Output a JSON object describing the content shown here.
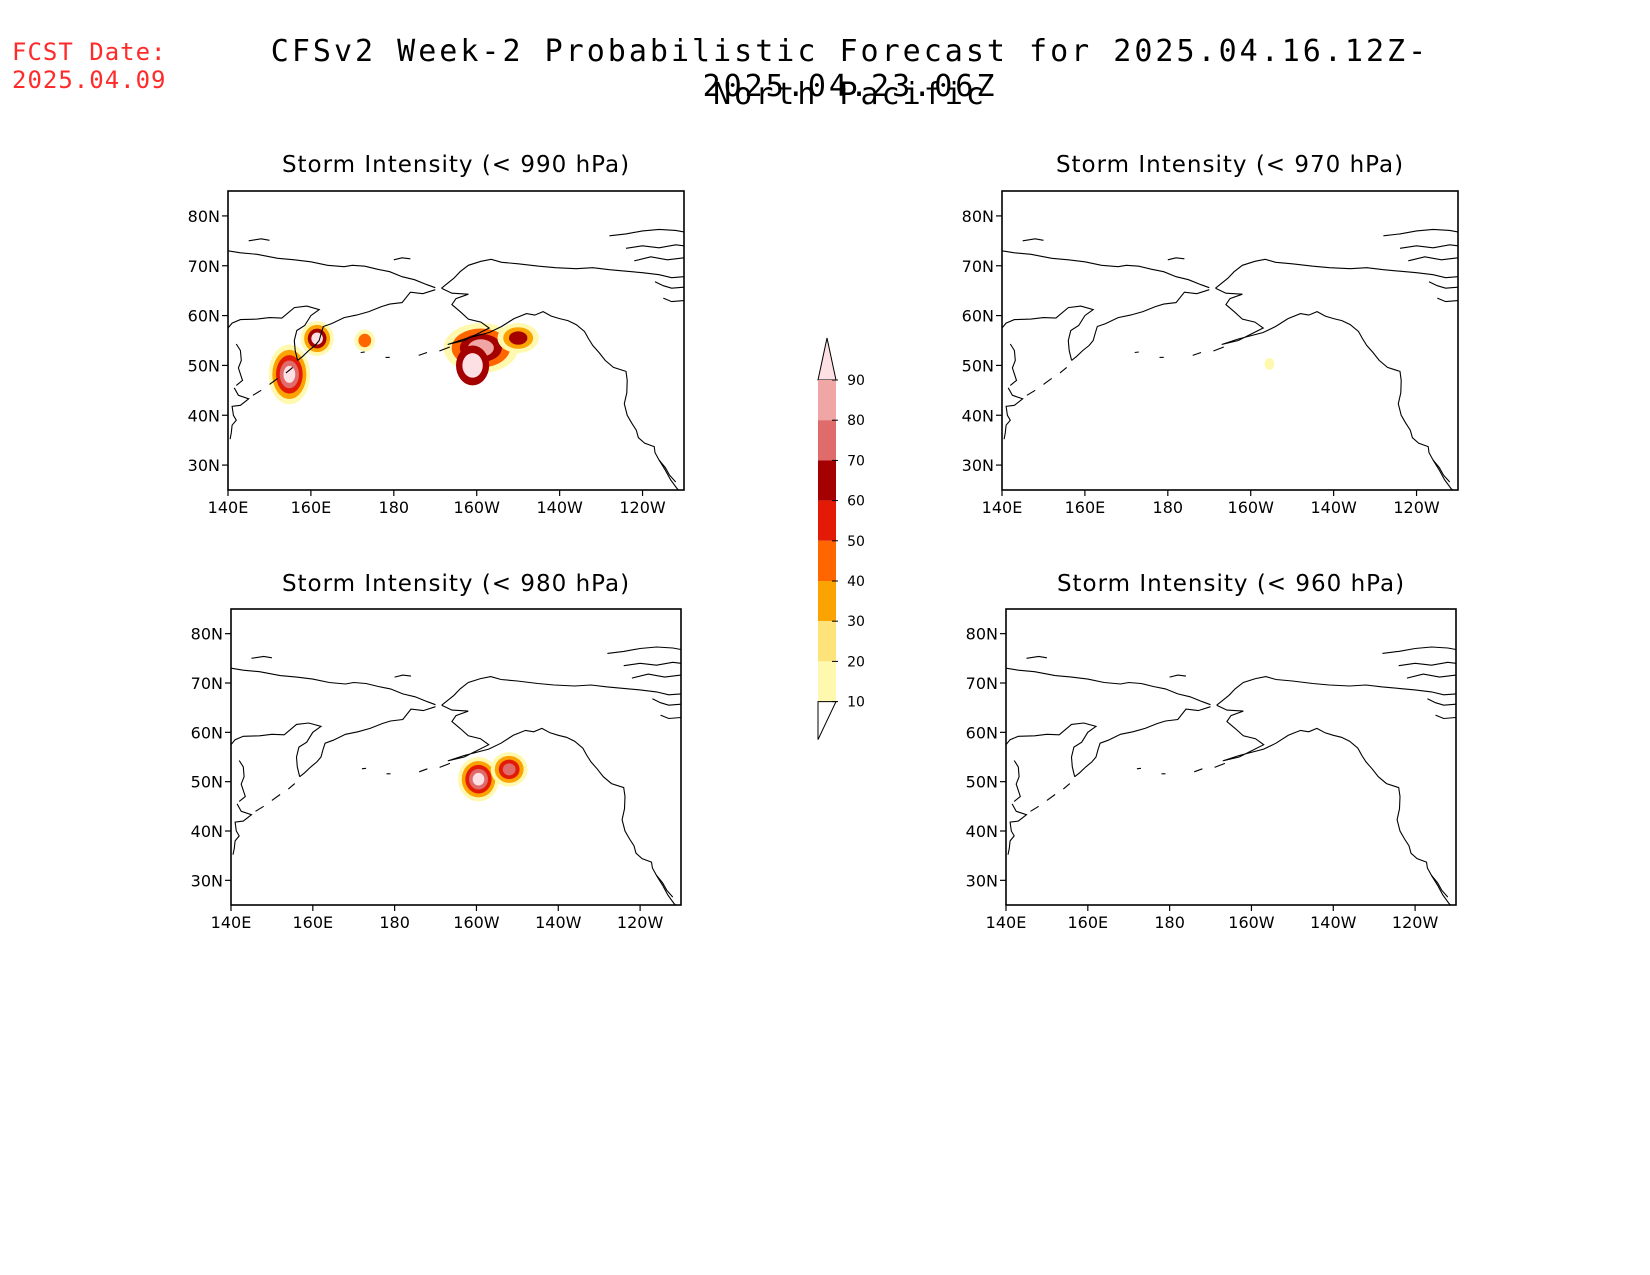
{
  "header": {
    "fcst_label": "FCST Date:",
    "fcst_date": "2025.04.09",
    "title": "CFSv2 Week-2 Probabilistic Forecast for 2025.04.16.12Z-2025.04.23.06Z",
    "region": "North Pacific"
  },
  "axes": {
    "lat_labels": [
      "80N",
      "70N",
      "60N",
      "50N",
      "40N",
      "30N"
    ],
    "lat_values": [
      80,
      70,
      60,
      50,
      40,
      30
    ],
    "lon_labels": [
      "140E",
      "160E",
      "180",
      "160W",
      "140W",
      "120W"
    ],
    "lon_values": [
      140,
      160,
      180,
      200,
      220,
      240
    ],
    "lon_range": [
      140,
      250
    ],
    "lat_range": [
      25,
      85
    ]
  },
  "panels": [
    {
      "id": "p990",
      "title": "Storm Intensity (< 990 hPa)",
      "blobs": [
        {
          "lon": 154.8,
          "lat": 48.2,
          "rx": 5,
          "ry": 6,
          "levels": [
            10,
            30,
            50,
            70,
            90
          ]
        },
        {
          "lon": 161.5,
          "lat": 55.4,
          "rx": 4,
          "ry": 3.5,
          "levels": [
            10,
            30,
            60,
            90
          ]
        },
        {
          "lon": 173,
          "lat": 55,
          "rx": 2.5,
          "ry": 2.2,
          "levels": [
            10,
            40
          ]
        },
        {
          "lon": 201,
          "lat": 53.5,
          "rx": 9,
          "ry": 5,
          "levels": [
            10,
            40,
            60,
            80
          ]
        },
        {
          "lon": 210,
          "lat": 55.5,
          "rx": 5,
          "ry": 3,
          "levels": [
            10,
            30,
            60
          ]
        },
        {
          "lon": 199,
          "lat": 50,
          "rx": 4,
          "ry": 4,
          "levels": [
            60,
            90
          ]
        }
      ]
    },
    {
      "id": "p970",
      "title": "Storm Intensity (< 970 hPa)",
      "blobs": [
        {
          "lon": 204.5,
          "lat": 50.3,
          "rx": 1.2,
          "ry": 1.2,
          "levels": [
            10
          ]
        }
      ]
    },
    {
      "id": "p980",
      "title": "Storm Intensity (< 980 hPa)",
      "blobs": [
        {
          "lon": 200.5,
          "lat": 50.5,
          "rx": 5,
          "ry": 4.5,
          "levels": [
            10,
            30,
            50,
            70,
            90
          ]
        },
        {
          "lon": 208,
          "lat": 52.5,
          "rx": 4.5,
          "ry": 3.5,
          "levels": [
            10,
            30,
            50,
            70
          ]
        }
      ]
    },
    {
      "id": "p960",
      "title": "Storm Intensity (< 960 hPa)",
      "blobs": []
    }
  ],
  "colorbar": {
    "levels": [
      10,
      20,
      30,
      40,
      50,
      60,
      70,
      80,
      90
    ],
    "labels": [
      "10",
      "20",
      "30",
      "40",
      "50",
      "60",
      "70",
      "80",
      "90"
    ],
    "colors": [
      "#fff9b0",
      "#fde37a",
      "#fba300",
      "#ff6600",
      "#e31a06",
      "#a50000",
      "#df6b6b",
      "#f1a6a6",
      "#fde0e4"
    ]
  }
}
